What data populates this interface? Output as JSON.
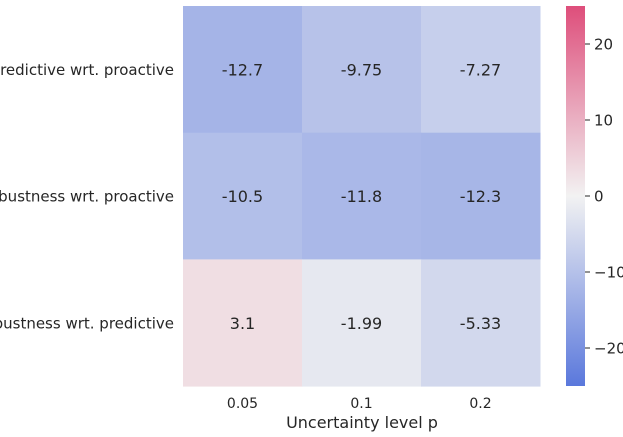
{
  "chart_data": {
    "type": "heatmap",
    "title": "",
    "xlabel": "Uncertainty level p",
    "ylabel": "",
    "x_categories": [
      "0.05",
      "0.1",
      "0.2"
    ],
    "y_categories": [
      "Predictive wrt. proactive",
      "Robustness wrt. proactive",
      "Robustness wrt. predictive"
    ],
    "values": [
      [
        -12.7,
        -9.75,
        -7.27
      ],
      [
        -10.5,
        -11.8,
        -12.3
      ],
      [
        3.1,
        -1.99,
        -5.33
      ]
    ],
    "annotations": [
      [
        "-12.7",
        "-9.75",
        "-7.27"
      ],
      [
        "-10.5",
        "-11.8",
        "-12.3"
      ],
      [
        "3.1",
        "-1.99",
        "-5.33"
      ]
    ],
    "colorbar": {
      "range": [
        -25,
        25
      ],
      "ticks": [
        -20,
        -10,
        0,
        10,
        20
      ],
      "tick_labels": [
        "−20",
        "−10",
        "0",
        "10",
        "20"
      ],
      "colors": {
        "low": "#5a78dc",
        "mid": "#f2f2f2",
        "high": "#de4e7b"
      }
    }
  }
}
